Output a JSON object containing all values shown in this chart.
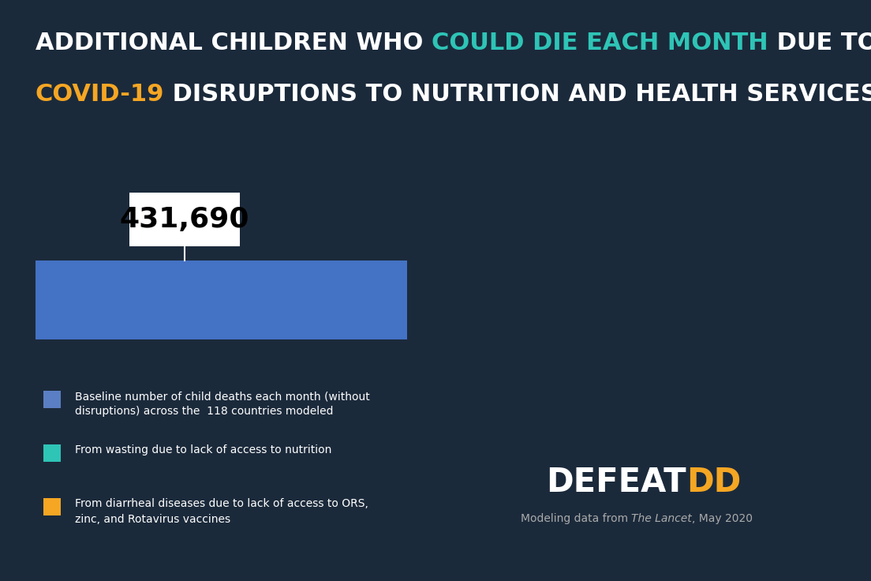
{
  "bg_color": "#1b2a3b",
  "title_color_white": "#ffffff",
  "title_color_teal": "#2ec4b6",
  "title_color_orange": "#f5a623",
  "title_line1_part1": "ADDITIONAL CHILDREN WHO ",
  "title_line1_highlight": "COULD DIE EACH MONTH",
  "title_line1_part2": " DUE TO POTENTIAL",
  "title_line2_highlight": "COVID-19",
  "title_line2_part2": " DISRUPTIONS TO NUTRITION AND HEALTH SERVICES",
  "bar_value": 431690,
  "bar_label": "431,690",
  "bar_color": "#4472c4",
  "bar_max": 600000,
  "legend_items": [
    {
      "color": "#5b7fc4",
      "text_line1": "Baseline number of child deaths each month (without",
      "text_line2": "disruptions) across the  118 countries modeled"
    },
    {
      "color": "#2ec4b6",
      "text_line1": "From wasting due to lack of access to nutrition",
      "text_line2": ""
    },
    {
      "color": "#f5a623",
      "text_line1": "From diarrheal diseases due to lack of access to ORS,",
      "text_line2": "zinc, and Rotavirus vaccines"
    }
  ],
  "brand_defeat": "DEFEAT",
  "brand_dd": "DD",
  "brand_defeat_color": "#ffffff",
  "brand_dd_color": "#f5a623",
  "source_text_regular": "Modeling data from ",
  "source_text_italic": "The Lancet",
  "source_text_end": ", May 2020",
  "source_color": "#aaaaaa"
}
